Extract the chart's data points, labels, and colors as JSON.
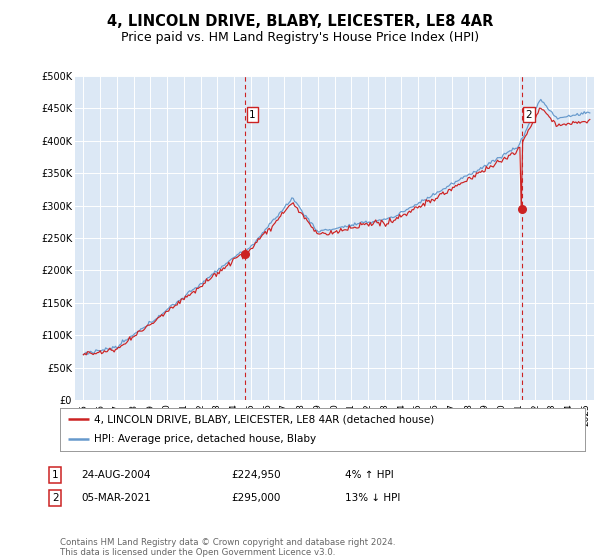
{
  "title": "4, LINCOLN DRIVE, BLABY, LEICESTER, LE8 4AR",
  "subtitle": "Price paid vs. HM Land Registry's House Price Index (HPI)",
  "title_fontsize": 10.5,
  "subtitle_fontsize": 9,
  "background_color": "#ffffff",
  "plot_bg_color": "#dce8f5",
  "grid_color": "#ffffff",
  "ylim": [
    0,
    500000
  ],
  "yticks": [
    0,
    50000,
    100000,
    150000,
    200000,
    250000,
    300000,
    350000,
    400000,
    450000,
    500000
  ],
  "ytick_labels": [
    "£0",
    "£50K",
    "£100K",
    "£150K",
    "£200K",
    "£250K",
    "£300K",
    "£350K",
    "£400K",
    "£450K",
    "£500K"
  ],
  "hpi_color": "#6699cc",
  "price_color": "#cc2222",
  "marker1_x": 2004.65,
  "marker1_y": 224950,
  "marker2_x": 2021.17,
  "marker2_y": 295000,
  "vline1_x": 2004.65,
  "vline2_x": 2021.17,
  "vline_color": "#cc2222",
  "legend_house": "4, LINCOLN DRIVE, BLABY, LEICESTER, LE8 4AR (detached house)",
  "legend_hpi": "HPI: Average price, detached house, Blaby",
  "table_row1": [
    "1",
    "24-AUG-2004",
    "£224,950",
    "4% ↑ HPI"
  ],
  "table_row2": [
    "2",
    "05-MAR-2021",
    "£295,000",
    "13% ↓ HPI"
  ],
  "footer": "Contains HM Land Registry data © Crown copyright and database right 2024.\nThis data is licensed under the Open Government Licence v3.0.",
  "xlim_start": 1994.5,
  "xlim_end": 2025.5,
  "xticks": [
    1995,
    1996,
    1997,
    1998,
    1999,
    2000,
    2001,
    2002,
    2003,
    2004,
    2005,
    2006,
    2007,
    2008,
    2009,
    2010,
    2011,
    2012,
    2013,
    2014,
    2015,
    2016,
    2017,
    2018,
    2019,
    2020,
    2021,
    2022,
    2023,
    2024,
    2025
  ]
}
